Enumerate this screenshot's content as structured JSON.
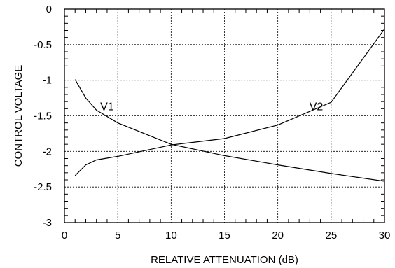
{
  "chart_data": {
    "type": "line",
    "title": "",
    "xlabel": "RELATIVE ATTENUATION (dB)",
    "ylabel": "CONTROL VOLTAGE",
    "xlim": [
      0,
      30
    ],
    "ylim": [
      -3,
      0
    ],
    "x_ticks": [
      0,
      5,
      10,
      15,
      20,
      25,
      30
    ],
    "y_ticks": [
      0,
      -0.5,
      -1,
      -1.5,
      -2,
      -2.5,
      -3
    ],
    "x_tick_labels": [
      "0",
      "5",
      "10",
      "15",
      "20",
      "25",
      "30"
    ],
    "y_tick_labels": [
      "0",
      "-0.5",
      "-1",
      "-1.5",
      "-2",
      "-2.5",
      "-3"
    ],
    "grid": true,
    "series": [
      {
        "name": "V1",
        "label_at": [
          4,
          -1.37
        ],
        "points": [
          [
            1,
            -0.99
          ],
          [
            2,
            -1.25
          ],
          [
            3,
            -1.42
          ],
          [
            5,
            -1.6
          ],
          [
            10,
            -1.9
          ],
          [
            15,
            -2.06
          ],
          [
            20,
            -2.19
          ],
          [
            25,
            -2.31
          ],
          [
            30,
            -2.42
          ]
        ]
      },
      {
        "name": "V2",
        "label_at": [
          23.6,
          -1.37
        ],
        "points": [
          [
            1,
            -2.34
          ],
          [
            2,
            -2.19
          ],
          [
            3,
            -2.12
          ],
          [
            5,
            -2.07
          ],
          [
            10,
            -1.91
          ],
          [
            15,
            -1.82
          ],
          [
            20,
            -1.63
          ],
          [
            25,
            -1.31
          ],
          [
            30,
            -0.28
          ]
        ]
      }
    ]
  }
}
